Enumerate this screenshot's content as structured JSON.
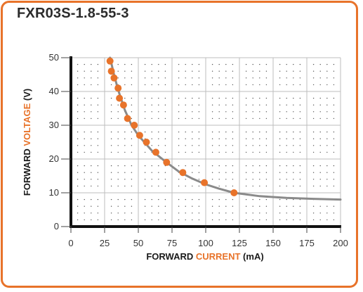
{
  "title": "FXR03S-1.8-55-3",
  "colors": {
    "accent": "#e8732a",
    "curve": "#8a8a8a",
    "axis": "#111111",
    "grid": "#bdbdbd",
    "dots": "#555555"
  },
  "chart_data": {
    "type": "scatter",
    "title": "FXR03S-1.8-55-3",
    "x_label": {
      "prefix": "FORWARD ",
      "highlight": "CURRENT",
      "suffix": " (mA)"
    },
    "y_label": {
      "prefix": "FORWARD ",
      "highlight": "VOLTAGE",
      "suffix": " (V)"
    },
    "xlim": [
      0,
      200
    ],
    "ylim": [
      0,
      50
    ],
    "x_ticks": [
      0,
      25,
      50,
      75,
      100,
      125,
      150,
      175,
      200
    ],
    "y_ticks": [
      0,
      10,
      20,
      30,
      40,
      50
    ],
    "grid": true,
    "series": [
      {
        "kind": "points",
        "x": [
          29,
          30,
          32,
          35,
          36,
          39,
          42,
          47,
          51,
          56,
          63,
          71,
          83,
          99,
          121
        ],
        "y": [
          49,
          46,
          44,
          41,
          38,
          36,
          32,
          30,
          27,
          25,
          22,
          19,
          16,
          13,
          10
        ]
      },
      {
        "kind": "curve",
        "x": [
          29,
          32,
          35,
          40,
          45,
          50,
          60,
          70,
          80,
          90,
          100,
          110,
          121,
          140,
          160,
          180,
          200
        ],
        "y": [
          50,
          45,
          40.5,
          34.5,
          30,
          27,
          22.5,
          19.3,
          16.3,
          14.2,
          12.5,
          11.2,
          10,
          9,
          8.5,
          8.2,
          8
        ]
      }
    ]
  }
}
